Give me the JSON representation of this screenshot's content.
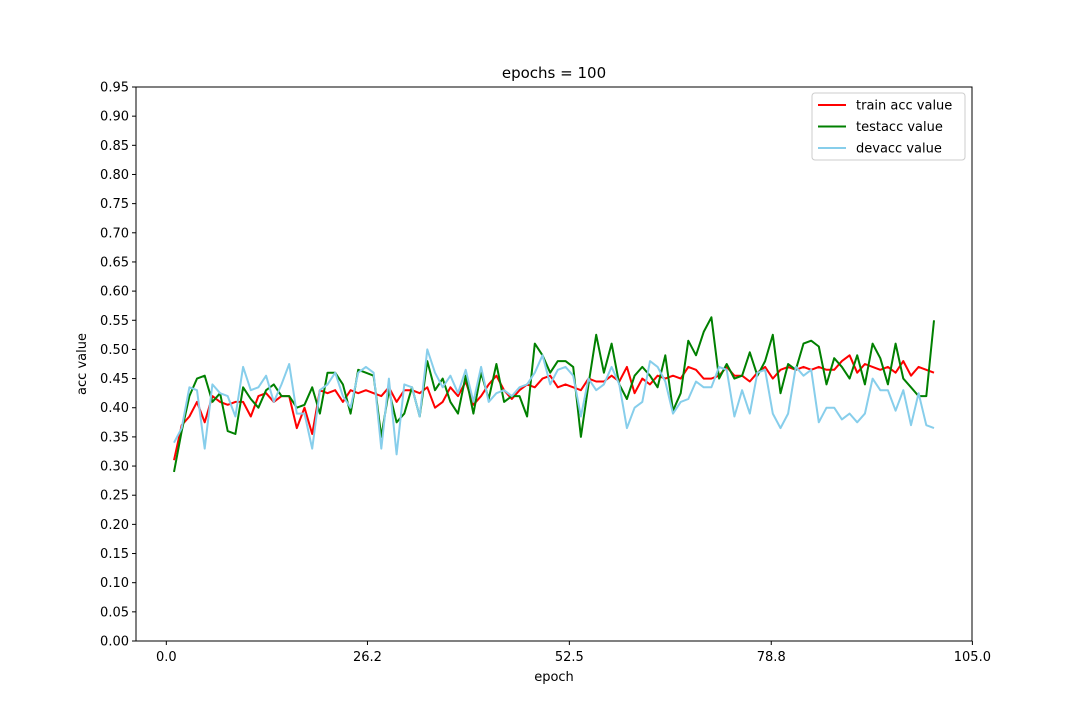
{
  "chart_data": {
    "type": "line",
    "title": "epochs = 100",
    "xlabel": "epoch",
    "ylabel": "acc value",
    "xlim": [
      -3.95,
      104.95
    ],
    "ylim": [
      0,
      0.95
    ],
    "xticks": [
      "0.0",
      "26.2",
      "52.5",
      "78.8",
      "105.0"
    ],
    "xtick_values": [
      0,
      26.2,
      52.5,
      78.8,
      105.0
    ],
    "yticks": [
      "0.00",
      "0.05",
      "0.10",
      "0.15",
      "0.20",
      "0.25",
      "0.30",
      "0.35",
      "0.40",
      "0.45",
      "0.50",
      "0.55",
      "0.60",
      "0.65",
      "0.70",
      "0.75",
      "0.80",
      "0.85",
      "0.90",
      "0.95"
    ],
    "grid": false,
    "legend_position": "top-right",
    "x_start": 1,
    "series": [
      {
        "name": "train acc value",
        "color": "#ff0000",
        "values": [
          0.31,
          0.37,
          0.385,
          0.41,
          0.375,
          0.42,
          0.41,
          0.405,
          0.41,
          0.41,
          0.385,
          0.42,
          0.425,
          0.41,
          0.42,
          0.42,
          0.365,
          0.4,
          0.355,
          0.43,
          0.425,
          0.43,
          0.41,
          0.43,
          0.425,
          0.43,
          0.425,
          0.42,
          0.435,
          0.41,
          0.43,
          0.43,
          0.425,
          0.435,
          0.4,
          0.41,
          0.435,
          0.42,
          0.445,
          0.405,
          0.42,
          0.44,
          0.455,
          0.43,
          0.415,
          0.43,
          0.44,
          0.435,
          0.45,
          0.455,
          0.435,
          0.44,
          0.435,
          0.43,
          0.45,
          0.445,
          0.445,
          0.455,
          0.445,
          0.47,
          0.425,
          0.45,
          0.44,
          0.455,
          0.45,
          0.455,
          0.45,
          0.47,
          0.465,
          0.45,
          0.45,
          0.455,
          0.47,
          0.455,
          0.455,
          0.445,
          0.46,
          0.47,
          0.45,
          0.465,
          0.47,
          0.465,
          0.47,
          0.465,
          0.47,
          0.465,
          0.465,
          0.48,
          0.49,
          0.46,
          0.475,
          0.47,
          0.465,
          0.47,
          0.46,
          0.48,
          0.455,
          0.47,
          0.465,
          0.46
        ]
      },
      {
        "name": "testacc value",
        "color": "#008000",
        "values": [
          0.29,
          0.36,
          0.42,
          0.45,
          0.455,
          0.41,
          0.425,
          0.36,
          0.355,
          0.435,
          0.415,
          0.4,
          0.43,
          0.44,
          0.42,
          0.42,
          0.4,
          0.405,
          0.435,
          0.39,
          0.46,
          0.46,
          0.44,
          0.39,
          0.465,
          0.46,
          0.455,
          0.35,
          0.43,
          0.375,
          0.39,
          0.435,
          0.385,
          0.48,
          0.43,
          0.45,
          0.41,
          0.39,
          0.455,
          0.39,
          0.46,
          0.415,
          0.475,
          0.41,
          0.42,
          0.42,
          0.385,
          0.51,
          0.49,
          0.46,
          0.48,
          0.48,
          0.47,
          0.35,
          0.44,
          0.525,
          0.46,
          0.51,
          0.44,
          0.415,
          0.455,
          0.47,
          0.455,
          0.435,
          0.49,
          0.395,
          0.425,
          0.515,
          0.49,
          0.53,
          0.555,
          0.45,
          0.475,
          0.45,
          0.455,
          0.495,
          0.455,
          0.48,
          0.525,
          0.425,
          0.475,
          0.465,
          0.51,
          0.515,
          0.505,
          0.44,
          0.485,
          0.47,
          0.45,
          0.49,
          0.44,
          0.51,
          0.485,
          0.44,
          0.51,
          0.45,
          0.435,
          0.42,
          0.42,
          0.55
        ]
      },
      {
        "name": "devacc value",
        "color": "#87ceeb",
        "values": [
          0.34,
          0.365,
          0.435,
          0.43,
          0.33,
          0.44,
          0.425,
          0.42,
          0.385,
          0.47,
          0.43,
          0.435,
          0.455,
          0.41,
          0.44,
          0.475,
          0.39,
          0.39,
          0.33,
          0.43,
          0.44,
          0.46,
          0.42,
          0.4,
          0.46,
          0.47,
          0.46,
          0.33,
          0.45,
          0.32,
          0.44,
          0.435,
          0.385,
          0.5,
          0.46,
          0.435,
          0.455,
          0.425,
          0.465,
          0.41,
          0.47,
          0.41,
          0.425,
          0.43,
          0.42,
          0.435,
          0.44,
          0.46,
          0.49,
          0.44,
          0.465,
          0.47,
          0.455,
          0.385,
          0.45,
          0.43,
          0.44,
          0.47,
          0.44,
          0.365,
          0.4,
          0.41,
          0.48,
          0.47,
          0.445,
          0.39,
          0.41,
          0.415,
          0.445,
          0.435,
          0.435,
          0.47,
          0.465,
          0.385,
          0.43,
          0.39,
          0.46,
          0.465,
          0.39,
          0.365,
          0.39,
          0.47,
          0.455,
          0.465,
          0.375,
          0.4,
          0.4,
          0.38,
          0.39,
          0.375,
          0.39,
          0.45,
          0.43,
          0.43,
          0.395,
          0.43,
          0.37,
          0.425,
          0.37,
          0.365
        ]
      }
    ]
  }
}
